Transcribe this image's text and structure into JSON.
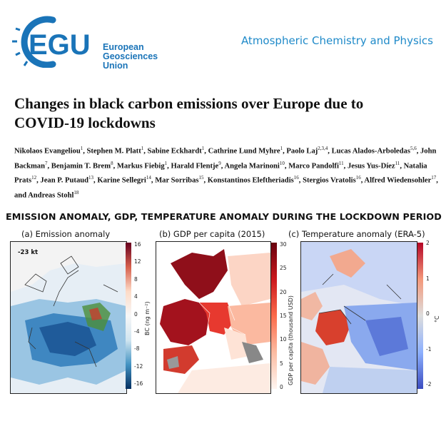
{
  "header": {
    "logo_letters": "EGU",
    "org_line1": "European",
    "org_line2": "Geosciences",
    "org_line3": "Union",
    "journal": "Atmospheric Chemistry and Physics",
    "brand_color": "#1a74b8"
  },
  "paper": {
    "title_line1": "Changes in black carbon emissions over Europe due to",
    "title_line2": "COVID-19 lockdowns",
    "authors": [
      {
        "name": "Nikolaos Evangeliou",
        "aff": "1"
      },
      {
        "name": "Stephen M. Platt",
        "aff": "1"
      },
      {
        "name": "Sabine Eckhardt",
        "aff": "1"
      },
      {
        "name": "Cathrine Lund Myhre",
        "aff": "1"
      },
      {
        "name": "Paolo Laj",
        "aff": "2,3,4"
      },
      {
        "name": "Lucas Alados-Arboledas",
        "aff": "5,6"
      },
      {
        "name": "John Backman",
        "aff": "7"
      },
      {
        "name": "Benjamin T. Brem",
        "aff": "8"
      },
      {
        "name": "Markus Fiebig",
        "aff": "1"
      },
      {
        "name": "Harald Flentje",
        "aff": "9"
      },
      {
        "name": "Angela Marinoni",
        "aff": "10"
      },
      {
        "name": "Marco Pandolfi",
        "aff": "11"
      },
      {
        "name": "Jesus Yus-Díez",
        "aff": "11"
      },
      {
        "name": "Natalia Prats",
        "aff": "12"
      },
      {
        "name": "Jean P. Putaud",
        "aff": "13"
      },
      {
        "name": "Karine Sellegri",
        "aff": "14"
      },
      {
        "name": "Mar Sorribas",
        "aff": "15"
      },
      {
        "name": "Konstantinos Eleftheriadis",
        "aff": "16"
      },
      {
        "name": "Stergios Vratolis",
        "aff": "16"
      },
      {
        "name": "Alfred Wiedensohler",
        "aff": "17"
      },
      {
        "name": "and Andreas Stohl",
        "aff": "18"
      }
    ]
  },
  "figure": {
    "heading": "EMISSION ANOMALY, GDP, TEMPERATURE ANOMALY DURING THE LOCKDOWN PERIOD",
    "panels": [
      {
        "title": "(a) Emission anomaly",
        "stamp": "-23 kt",
        "colorbar_label": "BC (ng m⁻²)",
        "ticks": [
          "16",
          "12",
          "8",
          "4",
          "0",
          "-4",
          "-8",
          "-12",
          "-16"
        ],
        "cmap": [
          "#67001f",
          "#d6604d",
          "#fddbc7",
          "#f7f7f7",
          "#d1e5f0",
          "#4393c3",
          "#053061"
        ]
      },
      {
        "title": "(b) GDP per capita (2015)",
        "colorbar_label": "GDP per capita (thousand USD)",
        "ticks": [
          "30",
          "25",
          "20",
          "15",
          "10",
          "5",
          "0"
        ],
        "cmap": [
          "#67000d",
          "#cb181d",
          "#fb6a4a",
          "#fcbba1",
          "#fff5f0"
        ]
      },
      {
        "title": "(c) Temperature anomaly (ERA-5)",
        "colorbar_label": "°C",
        "ticks": [
          "2",
          "1",
          "0",
          "-1",
          "-2"
        ],
        "cmap": [
          "#b40426",
          "#f4987a",
          "#dddddd",
          "#8db0fe",
          "#3b4cc0"
        ]
      }
    ]
  }
}
